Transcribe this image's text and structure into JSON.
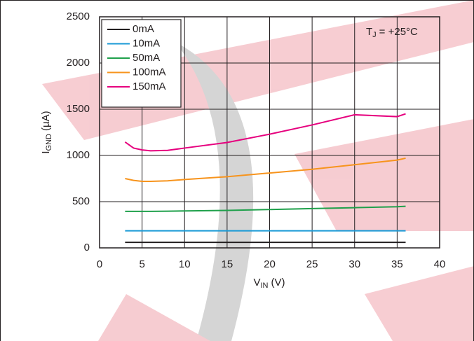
{
  "chart_data": {
    "type": "line",
    "x_label": {
      "main": "V",
      "sub": "IN",
      "unit": "(V)"
    },
    "y_label": {
      "main": "I",
      "sub": "GND",
      "unit": "(µA)"
    },
    "annotation": {
      "main": "T",
      "sub": "J",
      "rest": "= +25°C"
    },
    "x": [
      3,
      4,
      5,
      6,
      8,
      10,
      15,
      20,
      25,
      30,
      35,
      36
    ],
    "series": [
      {
        "name": "0mA",
        "color": "#231f20",
        "values": [
          60,
          60,
          60,
          60,
          60,
          60,
          60,
          60,
          60,
          60,
          60,
          60
        ]
      },
      {
        "name": "10mA",
        "color": "#1a9ad6",
        "values": [
          185,
          185,
          185,
          185,
          185,
          185,
          185,
          185,
          185,
          185,
          185,
          185
        ]
      },
      {
        "name": "50mA",
        "color": "#1fa04b",
        "values": [
          395,
          395,
          395,
          395,
          397,
          400,
          405,
          415,
          425,
          435,
          445,
          450
        ]
      },
      {
        "name": "100mA",
        "color": "#f7941d",
        "values": [
          750,
          730,
          720,
          720,
          725,
          740,
          770,
          810,
          850,
          900,
          950,
          970
        ]
      },
      {
        "name": "150mA",
        "color": "#e6007e",
        "values": [
          1145,
          1080,
          1060,
          1050,
          1055,
          1080,
          1140,
          1230,
          1330,
          1440,
          1420,
          1450
        ]
      }
    ],
    "xlim": [
      0,
      40
    ],
    "xticks": [
      0,
      5,
      10,
      15,
      20,
      25,
      30,
      35,
      40
    ],
    "ylim": [
      0,
      2500
    ],
    "yticks": [
      0,
      500,
      1000,
      1500,
      2000,
      2500
    ],
    "grid": true,
    "legend": "upper-left"
  }
}
